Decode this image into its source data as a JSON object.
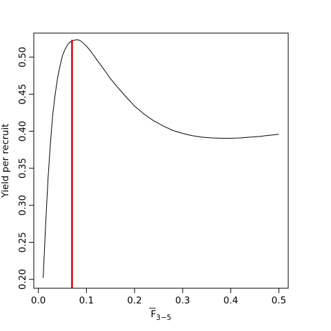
{
  "chart_data": {
    "type": "line",
    "title": "",
    "xlabel": "F",
    "xlabel_sub": "3−5",
    "ylabel": "Yield per recruit",
    "xlim": [
      -0.0095,
      0.5195
    ],
    "ylim": [
      0.188,
      0.5325
    ],
    "x_ticks": [
      0.0,
      0.1,
      0.2,
      0.3,
      0.4,
      0.5
    ],
    "x_tick_labels": [
      "0.0",
      "0.1",
      "0.2",
      "0.3",
      "0.4",
      "0.5"
    ],
    "y_ticks": [
      0.2,
      0.25,
      0.3,
      0.35,
      0.4,
      0.45,
      0.5
    ],
    "y_tick_labels": [
      "0.20",
      "0.25",
      "0.30",
      "0.35",
      "0.40",
      "0.45",
      "0.50"
    ],
    "grid": false,
    "series": [
      {
        "color": "#000000",
        "x": [
          0.01,
          0.015,
          0.02,
          0.025,
          0.03,
          0.035,
          0.04,
          0.045,
          0.05,
          0.055,
          0.06,
          0.065,
          0.07,
          0.075,
          0.08,
          0.085,
          0.09,
          0.095,
          0.1,
          0.11,
          0.12,
          0.13,
          0.14,
          0.15,
          0.16,
          0.18,
          0.2,
          0.22,
          0.24,
          0.26,
          0.28,
          0.3,
          0.32,
          0.34,
          0.36,
          0.38,
          0.4,
          0.42,
          0.44,
          0.46,
          0.48,
          0.5
        ],
        "y": [
          0.202,
          0.272,
          0.335,
          0.383,
          0.423,
          0.45,
          0.472,
          0.488,
          0.502,
          0.51,
          0.516,
          0.52,
          0.522,
          0.523,
          0.5235,
          0.523,
          0.521,
          0.518,
          0.515,
          0.507,
          0.498,
          0.489,
          0.48,
          0.471,
          0.463,
          0.448,
          0.434,
          0.423,
          0.414,
          0.407,
          0.401,
          0.397,
          0.394,
          0.392,
          0.391,
          0.3905,
          0.3905,
          0.391,
          0.392,
          0.393,
          0.3945,
          0.396
        ]
      }
    ],
    "reference_line": {
      "x": 0.07,
      "color": "#dd0000"
    }
  }
}
